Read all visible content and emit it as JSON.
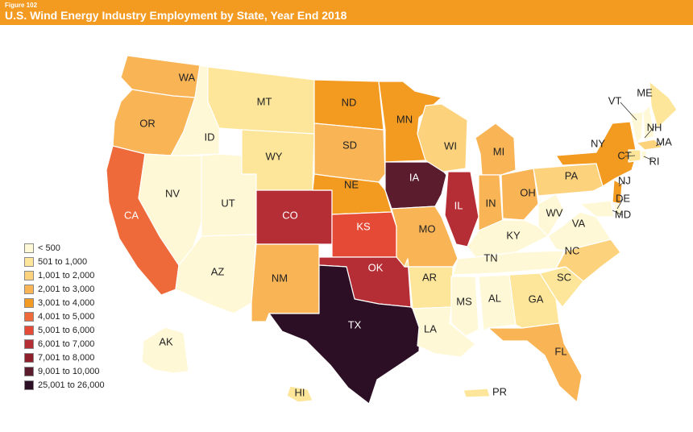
{
  "header": {
    "figure_number": "Figure 102",
    "title": "U.S. Wind Energy Industry Employment by State, Year End 2018"
  },
  "legend": [
    {
      "label": "< 500",
      "color": "#fff8d6"
    },
    {
      "label": "501 to 1,000",
      "color": "#fde69a"
    },
    {
      "label": "1,001 to 2,000",
      "color": "#fdd27d"
    },
    {
      "label": "2,001 to 3,000",
      "color": "#f9b456"
    },
    {
      "label": "3,001 to 4,000",
      "color": "#f39a21"
    },
    {
      "label": "4,001 to 5,000",
      "color": "#ef6a3a"
    },
    {
      "label": "5,001 to 6,000",
      "color": "#e44a36"
    },
    {
      "label": "6,001 to 7,000",
      "color": "#b52e35"
    },
    {
      "label": "7,001 to 8,000",
      "color": "#8f1f2b"
    },
    {
      "label": "9,001 to 10,000",
      "color": "#5b1c2e"
    },
    {
      "label": "25,001 to 26,000",
      "color": "#2c0f24"
    }
  ],
  "states": [
    {
      "abbr": "WA",
      "bin": 3,
      "label_color": "#222222"
    },
    {
      "abbr": "OR",
      "bin": 3,
      "label_color": "#222222"
    },
    {
      "abbr": "CA",
      "bin": 5,
      "label_color": "#ffffff"
    },
    {
      "abbr": "ID",
      "bin": 0,
      "label_color": "#222222"
    },
    {
      "abbr": "NV",
      "bin": 0,
      "label_color": "#222222"
    },
    {
      "abbr": "UT",
      "bin": 0,
      "label_color": "#222222"
    },
    {
      "abbr": "AZ",
      "bin": 0,
      "label_color": "#222222"
    },
    {
      "abbr": "MT",
      "bin": 1,
      "label_color": "#222222"
    },
    {
      "abbr": "WY",
      "bin": 1,
      "label_color": "#222222"
    },
    {
      "abbr": "CO",
      "bin": 7,
      "label_color": "#ffffff"
    },
    {
      "abbr": "NM",
      "bin": 3,
      "label_color": "#222222"
    },
    {
      "abbr": "ND",
      "bin": 4,
      "label_color": "#222222"
    },
    {
      "abbr": "SD",
      "bin": 3,
      "label_color": "#222222"
    },
    {
      "abbr": "NE",
      "bin": 4,
      "label_color": "#222222"
    },
    {
      "abbr": "KS",
      "bin": 6,
      "label_color": "#ffffff"
    },
    {
      "abbr": "OK",
      "bin": 7,
      "label_color": "#ffffff"
    },
    {
      "abbr": "TX",
      "bin": 10,
      "label_color": "#ffffff"
    },
    {
      "abbr": "MN",
      "bin": 4,
      "label_color": "#222222"
    },
    {
      "abbr": "IA",
      "bin": 9,
      "label_color": "#ffffff"
    },
    {
      "abbr": "MO",
      "bin": 3,
      "label_color": "#222222"
    },
    {
      "abbr": "AR",
      "bin": 1,
      "label_color": "#222222"
    },
    {
      "abbr": "LA",
      "bin": 0,
      "label_color": "#222222"
    },
    {
      "abbr": "WI",
      "bin": 2,
      "label_color": "#222222"
    },
    {
      "abbr": "IL",
      "bin": 7,
      "label_color": "#ffffff"
    },
    {
      "abbr": "MI",
      "bin": 3,
      "label_color": "#222222"
    },
    {
      "abbr": "IN",
      "bin": 3,
      "label_color": "#222222"
    },
    {
      "abbr": "OH",
      "bin": 3,
      "label_color": "#222222"
    },
    {
      "abbr": "KY",
      "bin": 0,
      "label_color": "#222222"
    },
    {
      "abbr": "TN",
      "bin": 0,
      "label_color": "#222222"
    },
    {
      "abbr": "MS",
      "bin": 0,
      "label_color": "#222222"
    },
    {
      "abbr": "AL",
      "bin": 0,
      "label_color": "#222222"
    },
    {
      "abbr": "GA",
      "bin": 1,
      "label_color": "#222222"
    },
    {
      "abbr": "FL",
      "bin": 3,
      "label_color": "#222222"
    },
    {
      "abbr": "SC",
      "bin": 1,
      "label_color": "#222222"
    },
    {
      "abbr": "NC",
      "bin": 2,
      "label_color": "#222222"
    },
    {
      "abbr": "VA",
      "bin": 0,
      "label_color": "#222222"
    },
    {
      "abbr": "WV",
      "bin": 0,
      "label_color": "#222222"
    },
    {
      "abbr": "PA",
      "bin": 2,
      "label_color": "#222222"
    },
    {
      "abbr": "NY",
      "bin": 4,
      "label_color": "#222222"
    },
    {
      "abbr": "VT",
      "bin": 0,
      "label_color": "#222222"
    },
    {
      "abbr": "NH",
      "bin": 0,
      "label_color": "#222222"
    },
    {
      "abbr": "ME",
      "bin": 1,
      "label_color": "#222222"
    },
    {
      "abbr": "MA",
      "bin": 2,
      "label_color": "#222222"
    },
    {
      "abbr": "CT",
      "bin": 1,
      "label_color": "#222222"
    },
    {
      "abbr": "RI",
      "bin": 0,
      "label_color": "#222222"
    },
    {
      "abbr": "NJ",
      "bin": 4,
      "label_color": "#222222"
    },
    {
      "abbr": "DE",
      "bin": 0,
      "label_color": "#222222"
    },
    {
      "abbr": "MD",
      "bin": 0,
      "label_color": "#222222"
    },
    {
      "abbr": "AK",
      "bin": 0,
      "label_color": "#222222"
    },
    {
      "abbr": "HI",
      "bin": 1,
      "label_color": "#222222"
    },
    {
      "abbr": "PR",
      "bin": 1,
      "label_color": "#222222"
    }
  ]
}
